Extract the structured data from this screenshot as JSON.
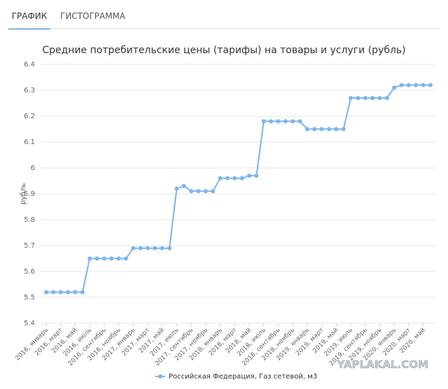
{
  "tabs": [
    "ГРАФИК",
    "ГИСТОГРАММА"
  ],
  "watermark": "YAPLAKAL.COM",
  "chart_data": {
    "type": "line",
    "title": "Средние потребительские цены (тарифы) на товары и услуги (рубль)",
    "y_label": "рубль",
    "categories": [
      "2016, январь",
      null,
      "2016, март",
      null,
      "2016, май",
      null,
      "2016, июль",
      null,
      "2016, сентябрь",
      null,
      "2016, ноябрь",
      null,
      "2017, январь",
      null,
      "2017, март",
      null,
      "2017, май",
      null,
      "2017, июль",
      null,
      "2017, сентябрь",
      null,
      "2017, ноябрь",
      null,
      "2018, январь",
      null,
      "2018, март",
      null,
      "2018, май",
      null,
      "2018, июль",
      null,
      "2018, сентябрь",
      null,
      "2018, ноябрь",
      null,
      "2019, январь",
      null,
      "2019, март",
      null,
      "2019, май",
      null,
      "2019, июль",
      null,
      "2019, сентябрь",
      null,
      "2019, ноябрь",
      null,
      "2020, январь",
      null,
      "2020, март",
      null,
      "2020, май",
      null
    ],
    "series": [
      {
        "name": "Российская Федерация, Газ сетевой, м3",
        "color": "#7cb5ec",
        "values": [
          5.52,
          5.52,
          5.52,
          5.52,
          5.52,
          5.52,
          5.65,
          5.65,
          5.65,
          5.65,
          5.65,
          5.65,
          5.69,
          5.69,
          5.69,
          5.69,
          5.69,
          5.69,
          5.92,
          5.93,
          5.91,
          5.91,
          5.91,
          5.91,
          5.96,
          5.96,
          5.96,
          5.96,
          5.97,
          5.97,
          6.18,
          6.18,
          6.18,
          6.18,
          6.18,
          6.18,
          6.15,
          6.15,
          6.15,
          6.15,
          6.15,
          6.15,
          6.27,
          6.27,
          6.27,
          6.27,
          6.27,
          6.27,
          6.31,
          6.32,
          6.32,
          6.32,
          6.32,
          6.32
        ]
      }
    ],
    "ylim": [
      5.4,
      6.4
    ],
    "yticks": [
      5.4,
      5.5,
      5.6,
      5.7,
      5.8,
      5.9,
      6,
      6.1,
      6.2,
      6.3,
      6.4
    ],
    "grid": true,
    "legend": "bottom"
  }
}
